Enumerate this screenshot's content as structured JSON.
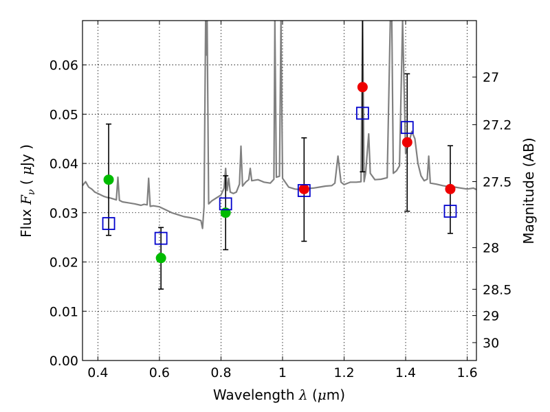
{
  "chart_data": {
    "type": "scatter",
    "xlabel": {
      "prefix": "Wavelength  ",
      "var": "λ",
      "unit_open": " (",
      "unit_mu": "μ",
      "unit_rest": "m)"
    },
    "ylabel": {
      "prefix": "Flux  ",
      "var": "F",
      "sub": "ν",
      "unit_open": "  ( ",
      "unit_mu": "μ",
      "unit_rest": "Jy )"
    },
    "y2label": "Magnitude (AB)",
    "xlim": [
      0.35,
      1.63
    ],
    "ylim": [
      0.0,
      0.069
    ],
    "x_ticks": [
      0.4,
      0.6,
      0.8,
      1.0,
      1.2,
      1.4,
      1.6
    ],
    "x_tick_labels": [
      "0.4",
      "0.6",
      "0.8",
      "1",
      "1.2",
      "1.4",
      "1.6"
    ],
    "y_ticks": [
      0.0,
      0.01,
      0.02,
      0.03,
      0.04,
      0.05,
      0.06
    ],
    "y_tick_labels": [
      "0.00",
      "0.01",
      "0.02",
      "0.03",
      "0.04",
      "0.05",
      "0.06"
    ],
    "y2_ticks": [
      27,
      27.2,
      27.5,
      28,
      28.5,
      29,
      30
    ],
    "y2_tick_labels": [
      "27",
      "27.2",
      "27.5",
      "28",
      "28.5",
      "29",
      "30"
    ],
    "grid": true,
    "colors": {
      "spectrum": "#808080",
      "green": "#00bb00",
      "red": "#ee0000",
      "model": "#0000cc",
      "errorbar": "#000000"
    },
    "spectrum": {
      "name": "",
      "points": [
        [
          0.35,
          0.0355
        ],
        [
          0.36,
          0.0363
        ],
        [
          0.37,
          0.0352
        ],
        [
          0.38,
          0.0348
        ],
        [
          0.39,
          0.0342
        ],
        [
          0.4,
          0.0339
        ],
        [
          0.41,
          0.0336
        ],
        [
          0.42,
          0.0333
        ],
        [
          0.43,
          0.0331
        ],
        [
          0.44,
          0.033
        ],
        [
          0.45,
          0.0328
        ],
        [
          0.46,
          0.0326
        ],
        [
          0.465,
          0.0372
        ],
        [
          0.47,
          0.0325
        ],
        [
          0.48,
          0.0322
        ],
        [
          0.5,
          0.032
        ],
        [
          0.52,
          0.0318
        ],
        [
          0.54,
          0.0315
        ],
        [
          0.55,
          0.0317
        ],
        [
          0.56,
          0.0316
        ],
        [
          0.565,
          0.037
        ],
        [
          0.57,
          0.0313
        ],
        [
          0.58,
          0.0314
        ],
        [
          0.6,
          0.0312
        ],
        [
          0.62,
          0.0306
        ],
        [
          0.64,
          0.03
        ],
        [
          0.66,
          0.0296
        ],
        [
          0.68,
          0.0292
        ],
        [
          0.7,
          0.029
        ],
        [
          0.72,
          0.0287
        ],
        [
          0.735,
          0.0284
        ],
        [
          0.74,
          0.0268
        ],
        [
          0.745,
          0.0312
        ],
        [
          0.75,
          0.069
        ],
        [
          0.752,
          0.062
        ],
        [
          0.755,
          0.069
        ],
        [
          0.76,
          0.0318
        ],
        [
          0.77,
          0.0324
        ],
        [
          0.78,
          0.0328
        ],
        [
          0.79,
          0.0332
        ],
        [
          0.8,
          0.0336
        ],
        [
          0.81,
          0.035
        ],
        [
          0.815,
          0.039
        ],
        [
          0.82,
          0.0345
        ],
        [
          0.825,
          0.037
        ],
        [
          0.83,
          0.0342
        ],
        [
          0.84,
          0.0339
        ],
        [
          0.85,
          0.0342
        ],
        [
          0.86,
          0.0358
        ],
        [
          0.865,
          0.0435
        ],
        [
          0.87,
          0.0354
        ],
        [
          0.88,
          0.0362
        ],
        [
          0.89,
          0.0367
        ],
        [
          0.895,
          0.039
        ],
        [
          0.9,
          0.0365
        ],
        [
          0.92,
          0.0367
        ],
        [
          0.94,
          0.0362
        ],
        [
          0.96,
          0.036
        ],
        [
          0.972,
          0.0368
        ],
        [
          0.975,
          0.069
        ],
        [
          0.98,
          0.0372
        ],
        [
          0.99,
          0.0374
        ],
        [
          0.995,
          0.069
        ],
        [
          1.0,
          0.037
        ],
        [
          1.02,
          0.0352
        ],
        [
          1.04,
          0.0348
        ],
        [
          1.06,
          0.0347
        ],
        [
          1.08,
          0.0349
        ],
        [
          1.1,
          0.035
        ],
        [
          1.12,
          0.0352
        ],
        [
          1.14,
          0.0354
        ],
        [
          1.16,
          0.0355
        ],
        [
          1.17,
          0.036
        ],
        [
          1.18,
          0.0415
        ],
        [
          1.19,
          0.0362
        ],
        [
          1.2,
          0.0357
        ],
        [
          1.22,
          0.0362
        ],
        [
          1.24,
          0.0362
        ],
        [
          1.255,
          0.0363
        ],
        [
          1.26,
          0.069
        ],
        [
          1.265,
          0.0363
        ],
        [
          1.27,
          0.038
        ],
        [
          1.28,
          0.046
        ],
        [
          1.285,
          0.038
        ],
        [
          1.3,
          0.0367
        ],
        [
          1.32,
          0.0368
        ],
        [
          1.34,
          0.0371
        ],
        [
          1.35,
          0.069
        ],
        [
          1.355,
          0.069
        ],
        [
          1.36,
          0.038
        ],
        [
          1.37,
          0.0385
        ],
        [
          1.38,
          0.0395
        ],
        [
          1.39,
          0.069
        ],
        [
          1.4,
          0.042
        ],
        [
          1.41,
          0.044
        ],
        [
          1.42,
          0.0465
        ],
        [
          1.43,
          0.045
        ],
        [
          1.44,
          0.04
        ],
        [
          1.45,
          0.0375
        ],
        [
          1.46,
          0.0365
        ],
        [
          1.47,
          0.0368
        ],
        [
          1.475,
          0.0415
        ],
        [
          1.48,
          0.036
        ],
        [
          1.5,
          0.0358
        ],
        [
          1.52,
          0.0355
        ],
        [
          1.54,
          0.0353
        ],
        [
          1.56,
          0.0352
        ],
        [
          1.58,
          0.035
        ],
        [
          1.6,
          0.0348
        ],
        [
          1.62,
          0.035
        ],
        [
          1.63,
          0.0347
        ]
      ]
    },
    "series": [
      {
        "color": "green",
        "marker": "circle",
        "points": [
          {
            "x": 0.435,
            "y": 0.0367
          },
          {
            "x": 0.605,
            "y": 0.0208
          },
          {
            "x": 0.815,
            "y": 0.03
          }
        ]
      },
      {
        "color": "red",
        "marker": "circle",
        "points": [
          {
            "x": 1.07,
            "y": 0.0348
          },
          {
            "x": 1.26,
            "y": 0.0555
          },
          {
            "x": 1.405,
            "y": 0.0443
          },
          {
            "x": 1.545,
            "y": 0.0348
          }
        ]
      },
      {
        "color": "blue",
        "marker": "open-square",
        "points": [
          {
            "x": 0.435,
            "y": 0.0278
          },
          {
            "x": 0.605,
            "y": 0.0248
          },
          {
            "x": 0.815,
            "y": 0.0318
          },
          {
            "x": 1.07,
            "y": 0.0345
          },
          {
            "x": 1.26,
            "y": 0.0502
          },
          {
            "x": 1.405,
            "y": 0.0473
          },
          {
            "x": 1.545,
            "y": 0.0303
          }
        ]
      }
    ],
    "errorbars": [
      {
        "x": 0.435,
        "low": 0.0254,
        "high": 0.048
      },
      {
        "x": 0.605,
        "low": 0.0145,
        "high": 0.027
      },
      {
        "x": 0.815,
        "low": 0.0225,
        "high": 0.0375
      },
      {
        "x": 1.07,
        "low": 0.0242,
        "high": 0.0452
      },
      {
        "x": 1.26,
        "low": 0.0383,
        "high": 0.069
      },
      {
        "x": 1.405,
        "low": 0.0303,
        "high": 0.0582
      },
      {
        "x": 1.545,
        "low": 0.0258,
        "high": 0.0436
      }
    ]
  }
}
